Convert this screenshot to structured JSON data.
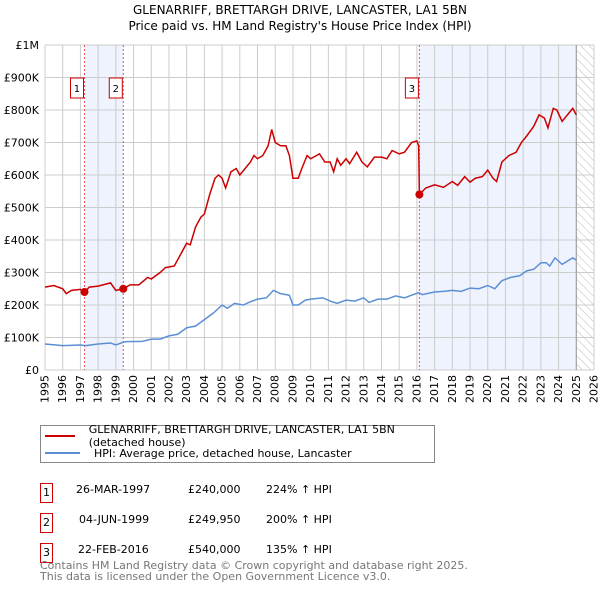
{
  "chart_data": {
    "type": "line",
    "title": "GLENARRIFF, BRETTARGH DRIVE, LANCASTER, LA1 5BN",
    "subtitle": "Price paid vs. HM Land Registry's House Price Index (HPI)",
    "xlim": [
      1995,
      2026
    ],
    "ylim": [
      0,
      1000000
    ],
    "x_ticks": [
      "1995",
      "1996",
      "1997",
      "1998",
      "1999",
      "2000",
      "2001",
      "2002",
      "2003",
      "2004",
      "2005",
      "2006",
      "2007",
      "2008",
      "2009",
      "2010",
      "2011",
      "2012",
      "2013",
      "2014",
      "2015",
      "2016",
      "2017",
      "2018",
      "2019",
      "2020",
      "2021",
      "2022",
      "2023",
      "2024",
      "2025",
      "2026"
    ],
    "y_ticks": [
      {
        "v": 0,
        "label": "£0"
      },
      {
        "v": 100000,
        "label": "£100K"
      },
      {
        "v": 200000,
        "label": "£200K"
      },
      {
        "v": 300000,
        "label": "£300K"
      },
      {
        "v": 400000,
        "label": "£400K"
      },
      {
        "v": 500000,
        "label": "£500K"
      },
      {
        "v": 600000,
        "label": "£600K"
      },
      {
        "v": 700000,
        "label": "£700K"
      },
      {
        "v": 800000,
        "label": "£800K"
      },
      {
        "v": 900000,
        "label": "£900K"
      },
      {
        "v": 1000000,
        "label": "£1M"
      }
    ],
    "grid": true,
    "shaded_ranges": [
      [
        1997.23,
        1999.42
      ],
      [
        2016.14,
        2025.0
      ]
    ],
    "forecast_hatch_from": 2025.0,
    "series": [
      {
        "name": "GLENARRIFF, BRETTARGH DRIVE, LANCASTER, LA1 5BN (detached house)",
        "color": "#cc0000",
        "x": [
          1995,
          1995.5,
          1996,
          1996.2,
          1996.5,
          1997,
          1997.23,
          1997.5,
          1998,
          1998.7,
          1999,
          1999.42,
          1999.8,
          2000.3,
          2000.8,
          2001,
          2001.5,
          2001.8,
          2002.3,
          2002.7,
          2003,
          2003.2,
          2003.5,
          2003.8,
          2004,
          2004.3,
          2004.6,
          2004.8,
          2005,
          2005.2,
          2005.5,
          2005.8,
          2006,
          2006.3,
          2006.6,
          2006.8,
          2007,
          2007.3,
          2007.6,
          2007.8,
          2008,
          2008.3,
          2008.6,
          2008.8,
          2009,
          2009.3,
          2009.5,
          2009.8,
          2010,
          2010.5,
          2010.8,
          2011.1,
          2011.3,
          2011.5,
          2011.7,
          2012,
          2012.2,
          2012.6,
          2012.9,
          2013.2,
          2013.6,
          2014,
          2014.3,
          2014.6,
          2015,
          2015.3,
          2015.7,
          2016,
          2016.1,
          2016.14,
          2016.5,
          2017,
          2017.5,
          2018,
          2018.3,
          2018.7,
          2019,
          2019.3,
          2019.7,
          2020,
          2020.3,
          2020.5,
          2020.8,
          2021.2,
          2021.6,
          2021.9,
          2022.2,
          2022.6,
          2022.9,
          2023.2,
          2023.4,
          2023.7,
          2023.9,
          2024.2,
          2024.5,
          2024.8,
          2025
        ],
        "y": [
          255000,
          260000,
          250000,
          235000,
          245000,
          248000,
          240000,
          255000,
          258000,
          268000,
          245000,
          249950,
          262000,
          262000,
          285000,
          280000,
          300000,
          315000,
          320000,
          360000,
          390000,
          385000,
          440000,
          470000,
          480000,
          540000,
          590000,
          600000,
          590000,
          560000,
          610000,
          620000,
          600000,
          620000,
          640000,
          660000,
          650000,
          660000,
          690000,
          740000,
          700000,
          690000,
          690000,
          660000,
          590000,
          590000,
          620000,
          660000,
          650000,
          665000,
          640000,
          640000,
          610000,
          650000,
          630000,
          650000,
          635000,
          670000,
          640000,
          625000,
          655000,
          655000,
          650000,
          675000,
          665000,
          670000,
          700000,
          705000,
          690000,
          540000,
          560000,
          570000,
          562000,
          580000,
          568000,
          595000,
          578000,
          590000,
          595000,
          615000,
          590000,
          580000,
          640000,
          660000,
          670000,
          700000,
          720000,
          750000,
          785000,
          775000,
          745000,
          805000,
          800000,
          765000,
          785000,
          805000,
          785000
        ]
      },
      {
        "name": "HPI: Average price, detached house, Lancaster",
        "color": "#5b8fd4",
        "x": [
          1995,
          1996,
          1997,
          1997.3,
          1998,
          1998.7,
          1999,
          1999.5,
          2000.5,
          2001,
          2001.5,
          2002,
          2002.5,
          2003,
          2003.5,
          2004,
          2004.5,
          2005,
          2005.3,
          2005.7,
          2006.2,
          2006.6,
          2007,
          2007.5,
          2007.9,
          2008.3,
          2008.8,
          2009,
          2009.3,
          2009.7,
          2010,
          2010.7,
          2011.2,
          2011.5,
          2012,
          2012.5,
          2013,
          2013.3,
          2013.8,
          2014.3,
          2014.8,
          2015.3,
          2015.8,
          2016.1,
          2016.3,
          2017,
          2017.5,
          2018,
          2018.5,
          2019,
          2019.5,
          2020,
          2020.4,
          2020.8,
          2021.3,
          2021.8,
          2022.2,
          2022.6,
          2023,
          2023.3,
          2023.5,
          2023.8,
          2024.2,
          2024.5,
          2024.8,
          2025
        ],
        "y": [
          80000,
          75000,
          77000,
          75000,
          80000,
          83000,
          77000,
          87000,
          88000,
          95000,
          95000,
          105000,
          110000,
          130000,
          135000,
          155000,
          175000,
          200000,
          190000,
          205000,
          200000,
          210000,
          218000,
          222000,
          245000,
          235000,
          230000,
          200000,
          200000,
          215000,
          218000,
          222000,
          210000,
          205000,
          215000,
          212000,
          222000,
          208000,
          218000,
          218000,
          228000,
          222000,
          232000,
          238000,
          232000,
          240000,
          242000,
          245000,
          242000,
          252000,
          250000,
          260000,
          250000,
          275000,
          285000,
          290000,
          305000,
          310000,
          330000,
          330000,
          320000,
          345000,
          325000,
          335000,
          345000,
          338000
        ]
      }
    ],
    "sales": [
      {
        "id": "1",
        "date": "26-MAR-1997",
        "x": 1997.23,
        "price": 240000,
        "price_label": "£240,000",
        "hpi": "224% ↑ HPI"
      },
      {
        "id": "2",
        "date": "04-JUN-1999",
        "x": 1999.42,
        "price": 249950,
        "price_label": "£249,950",
        "hpi": "200% ↑ HPI"
      },
      {
        "id": "3",
        "date": "22-FEB-2016",
        "x": 2016.14,
        "price": 540000,
        "price_label": "£540,000",
        "hpi": "135% ↑ HPI"
      }
    ]
  },
  "footer": {
    "line1": "Contains HM Land Registry data © Crown copyright and database right 2025.",
    "line2": "This data is licensed under the Open Government Licence v3.0."
  }
}
